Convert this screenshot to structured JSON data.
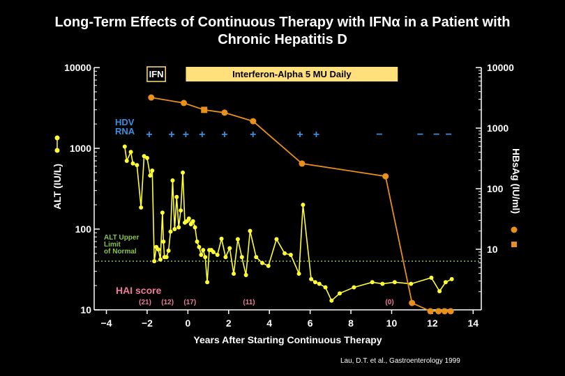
{
  "title": {
    "line1": "Long-Term Effects of Continuous Therapy with IFNα in a Patient with",
    "line2": "Chronic Hepatitis D"
  },
  "citation": "Lau, D.T. et al., Gastroenterology 1999",
  "colors": {
    "background": "#000000",
    "alt_series": "#ffff33",
    "hbsag_series": "#e8901a",
    "hdv_label": "#3a8fe0",
    "hai_label": "#f07a9a",
    "uln_line": "#8bc34a",
    "therapy_bar": "#ffe07a"
  },
  "chart_data": {
    "type": "line",
    "xlabel": "Years After Starting Continuous Therapy",
    "xlim": [
      -4.6,
      14.4
    ],
    "xticks": [
      -4,
      -2,
      0,
      2,
      4,
      6,
      8,
      10,
      12,
      14
    ],
    "xtick_labels": [
      "−4",
      "−2",
      "0",
      "2",
      "4",
      "6",
      "8",
      "10",
      "12",
      "14"
    ],
    "y_left": {
      "label": "ALT (IU/L)",
      "scale": "log",
      "ylim": [
        10,
        10000
      ],
      "ticks": [
        10,
        100,
        1000,
        10000
      ],
      "tick_labels": [
        "10",
        "100",
        "1000",
        "10000"
      ]
    },
    "y_right": {
      "label": "HBsAg (IU/ml)",
      "scale": "log",
      "ylim": [
        1,
        10000
      ],
      "ticks": [
        10,
        100,
        1000,
        10000
      ],
      "tick_labels": [
        "10",
        "100",
        "1000",
        "10000"
      ]
    },
    "series": [
      {
        "name": "ALT",
        "axis": "left",
        "x": [
          -3.1,
          -3.0,
          -2.8,
          -2.7,
          -2.5,
          -2.3,
          -2.15,
          -2.0,
          -1.85,
          -1.75,
          -1.65,
          -1.55,
          -1.45,
          -1.35,
          -1.25,
          -1.2,
          -1.15,
          -1.05,
          -0.95,
          -0.85,
          -0.75,
          -0.65,
          -0.55,
          -0.45,
          -0.35,
          -0.25,
          -0.15,
          -0.05,
          0.05,
          0.15,
          0.25,
          0.35,
          0.45,
          0.55,
          0.65,
          0.75,
          0.85,
          0.95,
          1.05,
          1.15,
          1.25,
          1.45,
          1.65,
          1.85,
          2.05,
          2.25,
          2.45,
          2.65,
          2.85,
          3.05,
          3.35,
          3.65,
          3.95,
          4.35,
          4.75,
          5.05,
          5.45,
          5.65,
          6.05,
          6.25,
          6.45,
          6.75,
          7.05,
          7.45,
          8.15,
          9.05,
          9.55,
          10.15,
          10.95,
          11.95,
          12.35,
          12.65,
          12.95
        ],
        "values": [
          1050,
          700,
          900,
          650,
          620,
          185,
          800,
          760,
          460,
          530,
          40,
          60,
          56,
          42,
          160,
          70,
          45,
          45,
          54,
          93,
          400,
          100,
          250,
          105,
          170,
          500,
          120,
          125,
          135,
          115,
          125,
          105,
          70,
          60,
          48,
          55,
          45,
          22,
          55,
          55,
          52,
          48,
          76,
          45,
          58,
          28,
          75,
          45,
          27,
          95,
          45,
          38,
          35,
          75,
          50,
          48,
          28,
          200,
          24,
          22,
          21,
          19,
          13,
          16,
          19,
          22,
          21,
          22,
          21,
          25,
          17,
          22,
          24
        ]
      },
      {
        "name": "HBsAg",
        "axis": "right",
        "x": [
          -1.8,
          -0.2,
          0.8,
          1.8,
          3.2,
          5.6,
          9.7,
          11.0,
          11.9,
          12.3,
          12.6,
          12.9
        ],
        "values": [
          3200,
          2600,
          2000,
          1800,
          1300,
          260,
          160,
          1.3,
          0.95,
          0.95,
          0.95,
          0.95
        ]
      }
    ],
    "reference_line": {
      "name": "ALT Upper Limit of Normal",
      "axis": "left",
      "value": 40,
      "label_lines": [
        "ALT Upper",
        "Limit",
        "of Normal"
      ]
    },
    "legend_markers": {
      "alt": "ALT (IU/L)",
      "hbsag": "HBsAg (IU/ml)"
    },
    "therapy_bars": [
      {
        "label": "IFN",
        "start": -2.0,
        "end": -1.1,
        "style": "outline"
      },
      {
        "label": "Interferon-Alpha 5 MU Daily",
        "start": -0.1,
        "end": 10.3,
        "style": "filled"
      }
    ],
    "hdv_rna": {
      "label_lines": [
        "HDV",
        "RNA"
      ],
      "points": [
        {
          "x": -1.9,
          "sign": "+"
        },
        {
          "x": -0.8,
          "sign": "+"
        },
        {
          "x": -0.1,
          "sign": "+"
        },
        {
          "x": 0.7,
          "sign": "+"
        },
        {
          "x": 1.8,
          "sign": "+"
        },
        {
          "x": 3.2,
          "sign": "+"
        },
        {
          "x": 5.5,
          "sign": "+"
        },
        {
          "x": 6.3,
          "sign": "+"
        },
        {
          "x": 9.4,
          "sign": "−"
        },
        {
          "x": 11.4,
          "sign": "−"
        },
        {
          "x": 12.2,
          "sign": "−"
        },
        {
          "x": 12.8,
          "sign": "−"
        }
      ]
    },
    "hai_score": {
      "label": "HAI score",
      "points": [
        {
          "x": -2.1,
          "label": "(21)"
        },
        {
          "x": -1.0,
          "label": "(12)"
        },
        {
          "x": 0.1,
          "label": "(17)"
        },
        {
          "x": 3.0,
          "label": "(11)"
        },
        {
          "x": 9.9,
          "label": "(0)"
        }
      ]
    }
  }
}
